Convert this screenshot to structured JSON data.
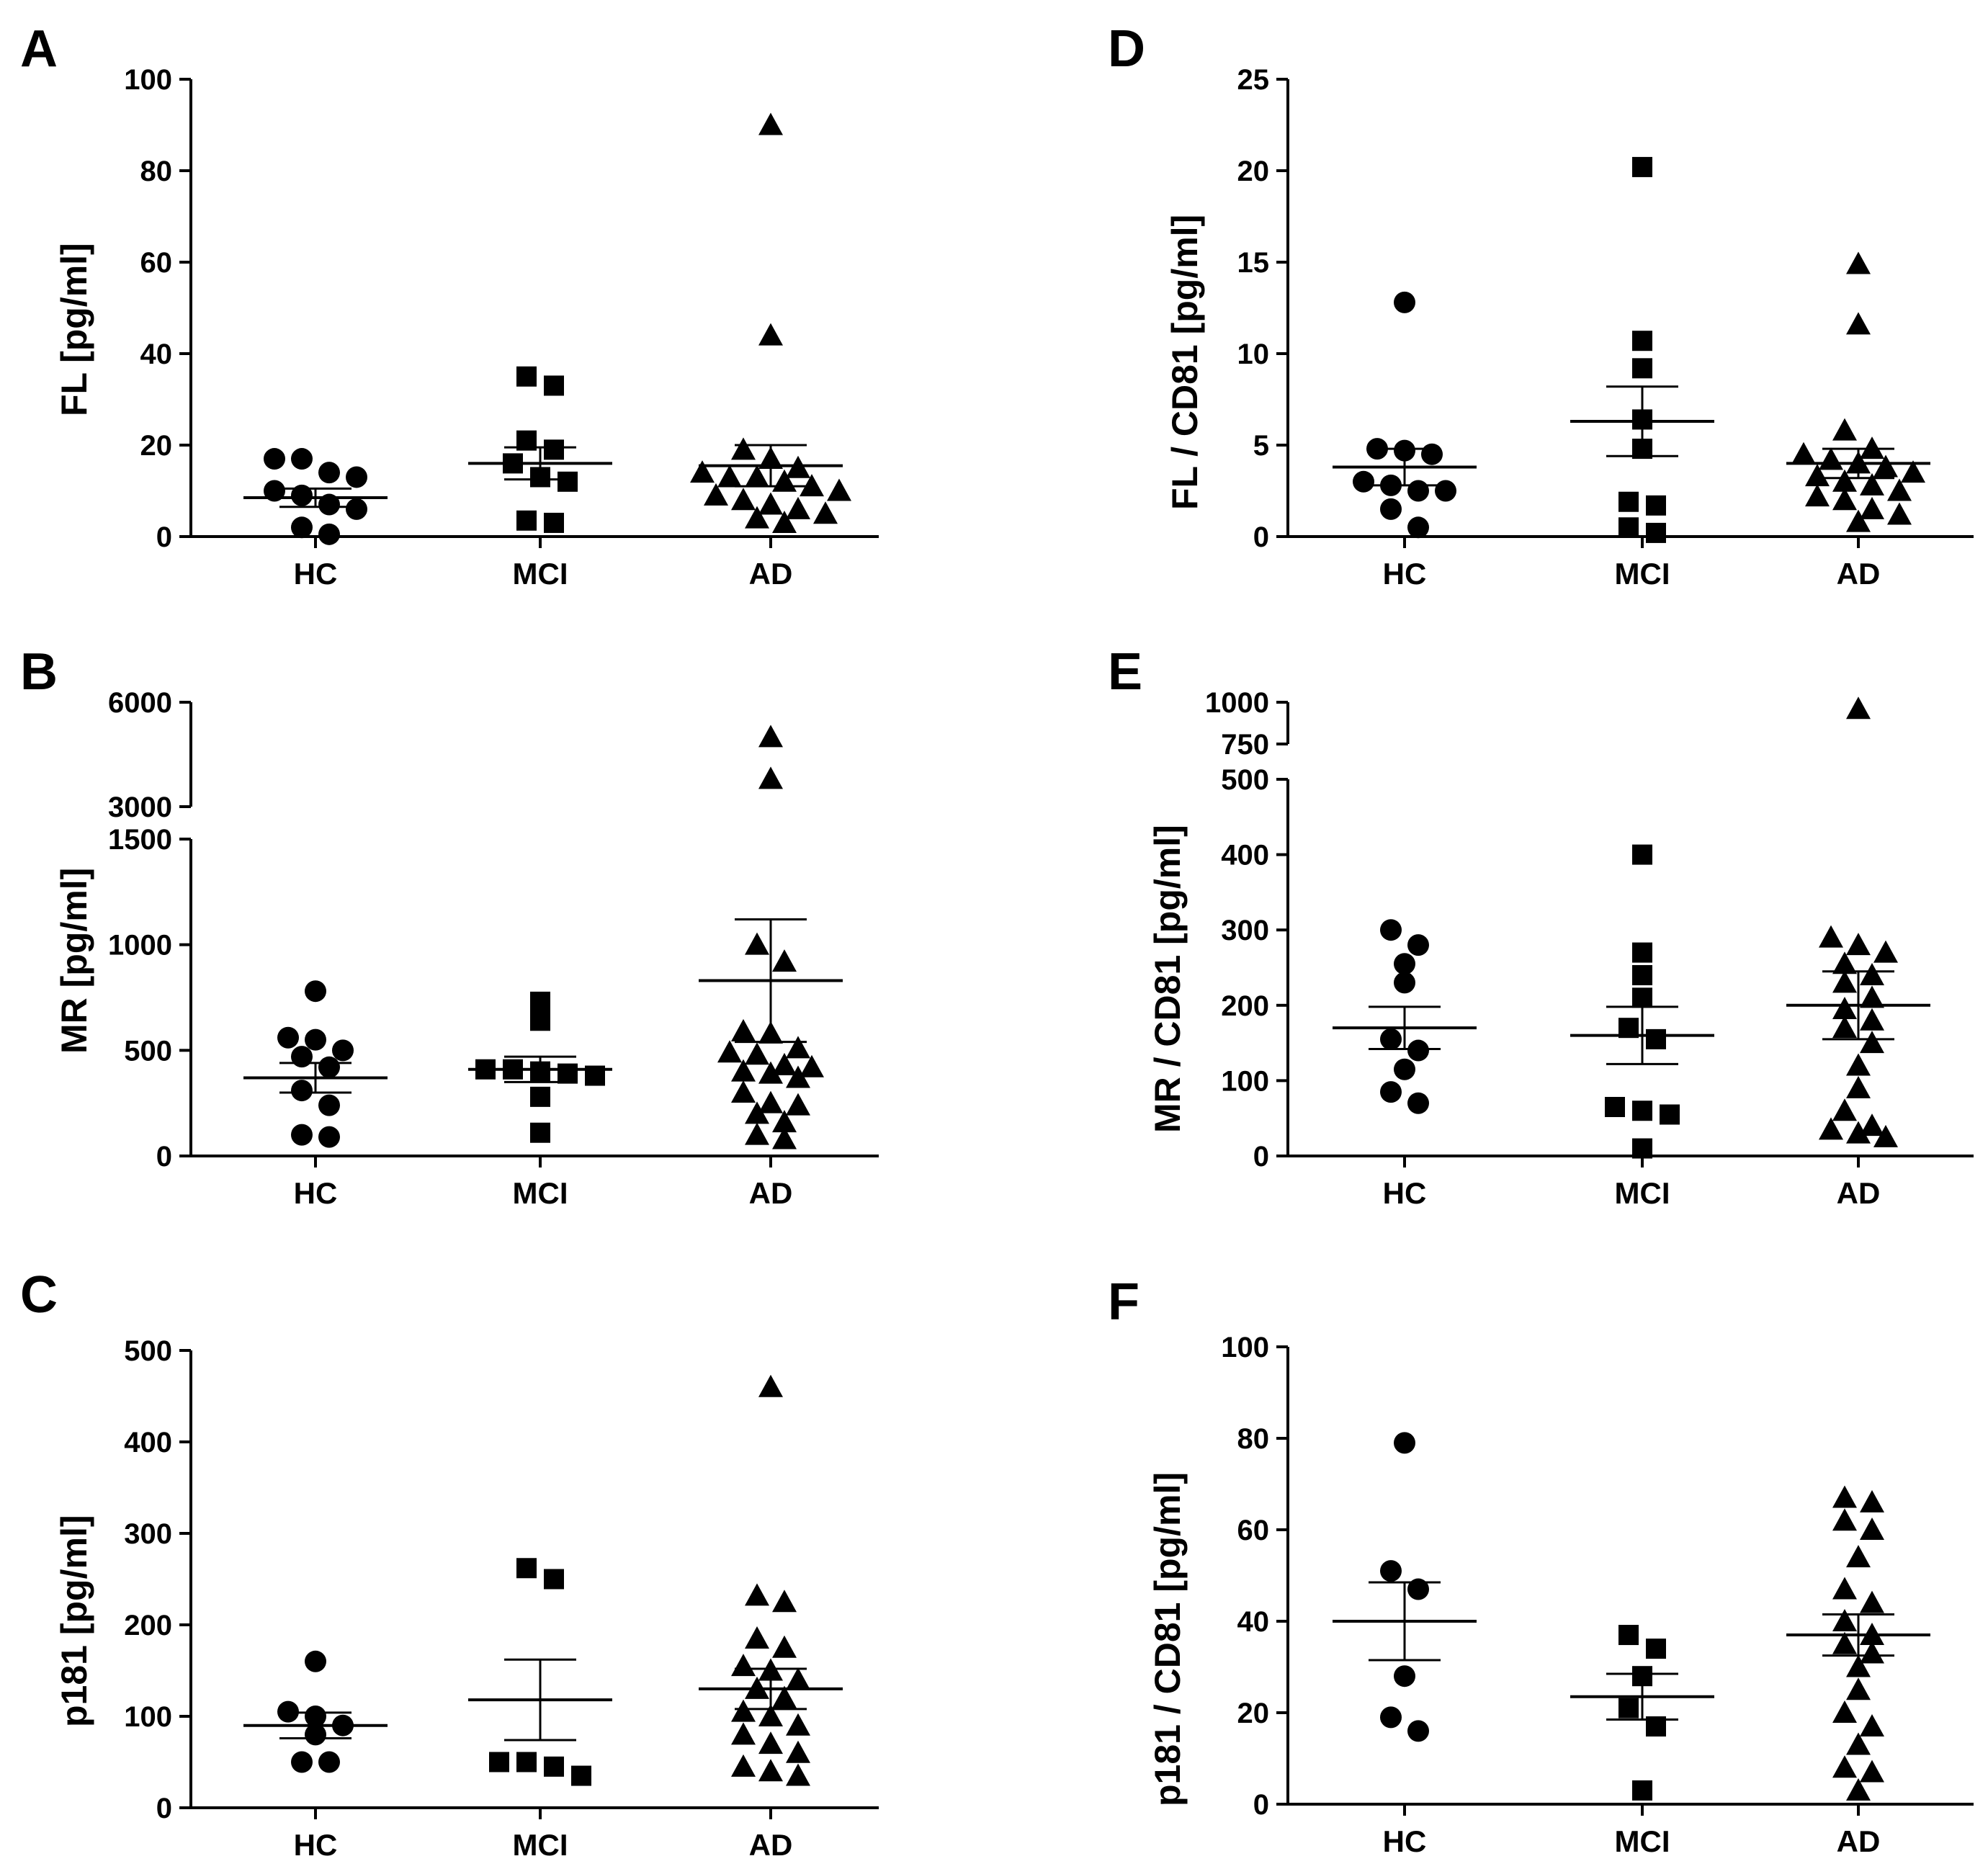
{
  "figure": {
    "panels": [
      "A",
      "B",
      "C",
      "D",
      "E",
      "F"
    ]
  },
  "chart_data": [
    {
      "id": "A",
      "type": "scatter",
      "title": "",
      "xlabel": "",
      "ylabel": "FL [pg/ml]",
      "categories": [
        "HC",
        "MCI",
        "AD"
      ],
      "markers": [
        "circle",
        "square",
        "triangle"
      ],
      "ylim": [
        0,
        100
      ],
      "yticks": [
        0,
        20,
        40,
        60,
        80,
        100
      ],
      "ytick_labels": [
        "0",
        "20",
        "40",
        "60",
        "80",
        "100"
      ],
      "series": [
        {
          "name": "HC",
          "values": [
            0.5,
            2,
            6,
            7,
            9,
            10,
            13,
            14,
            17,
            17
          ],
          "mean": 8.5,
          "sem": 2.0
        },
        {
          "name": "MCI",
          "values": [
            3,
            3.5,
            12,
            13,
            16,
            19,
            21,
            33,
            35
          ],
          "mean": 16,
          "sem": 3.5
        },
        {
          "name": "AD",
          "values": [
            3,
            4,
            5,
            6,
            7,
            8,
            9,
            10,
            11,
            12,
            13,
            13,
            14,
            15,
            17,
            19,
            44,
            90
          ],
          "mean": 15.5,
          "sem": 4.5
        }
      ]
    },
    {
      "id": "B",
      "type": "scatter",
      "title": "",
      "xlabel": "",
      "ylabel": "MR [pg/ml]",
      "categories": [
        "HC",
        "MCI",
        "AD"
      ],
      "markers": [
        "circle",
        "square",
        "triangle"
      ],
      "ylim": [
        0,
        6000
      ],
      "axis_break": [
        1500,
        3000
      ],
      "yticks": [
        0,
        500,
        1000,
        1500,
        3000,
        6000
      ],
      "ytick_labels": [
        "0",
        "500",
        "1000",
        "1500",
        "3000",
        "6000"
      ],
      "series": [
        {
          "name": "HC",
          "values": [
            90,
            100,
            240,
            310,
            420,
            470,
            500,
            550,
            560,
            780
          ],
          "mean": 370,
          "sem": 70
        },
        {
          "name": "MCI",
          "values": [
            110,
            280,
            380,
            390,
            400,
            410,
            410,
            640,
            730
          ],
          "mean": 410,
          "sem": 60
        },
        {
          "name": "AD",
          "values": [
            80,
            100,
            160,
            200,
            240,
            250,
            300,
            370,
            390,
            400,
            420,
            430,
            480,
            490,
            510,
            580,
            590,
            920,
            1000,
            3800,
            5000
          ],
          "mean": 830,
          "sem": 290
        }
      ]
    },
    {
      "id": "C",
      "type": "scatter",
      "title": "",
      "xlabel": "",
      "ylabel": "p181 [pg/ml]",
      "categories": [
        "HC",
        "MCI",
        "AD"
      ],
      "markers": [
        "circle",
        "square",
        "triangle"
      ],
      "ylim": [
        0,
        500
      ],
      "yticks": [
        0,
        100,
        200,
        300,
        400,
        500
      ],
      "ytick_labels": [
        "0",
        "100",
        "200",
        "300",
        "400",
        "500"
      ],
      "series": [
        {
          "name": "HC",
          "values": [
            50,
            50,
            80,
            90,
            100,
            105,
            160
          ],
          "mean": 90,
          "sem": 14
        },
        {
          "name": "MCI",
          "values": [
            35,
            45,
            50,
            50,
            250,
            262
          ],
          "mean": 118,
          "sem": 44
        },
        {
          "name": "AD",
          "values": [
            35,
            40,
            45,
            60,
            70,
            80,
            90,
            100,
            105,
            120,
            130,
            140,
            150,
            155,
            175,
            185,
            225,
            232,
            460
          ],
          "mean": 130,
          "sem": 22
        }
      ]
    },
    {
      "id": "D",
      "type": "scatter",
      "title": "",
      "xlabel": "",
      "ylabel": "FL / CD81 [pg/ml]",
      "categories": [
        "HC",
        "MCI",
        "AD"
      ],
      "markers": [
        "circle",
        "square",
        "triangle"
      ],
      "ylim": [
        0,
        25
      ],
      "yticks": [
        0,
        5,
        10,
        15,
        20,
        25
      ],
      "ytick_labels": [
        "0",
        "5",
        "10",
        "15",
        "20",
        "25"
      ],
      "series": [
        {
          "name": "HC",
          "values": [
            0.5,
            1.5,
            2.5,
            2.5,
            2.8,
            3.0,
            4.5,
            4.7,
            4.8,
            12.8
          ],
          "mean": 3.8,
          "sem": 1.0
        },
        {
          "name": "MCI",
          "values": [
            0.2,
            0.5,
            1.7,
            1.9,
            4.8,
            6.4,
            9.2,
            10.7,
            20.2
          ],
          "mean": 6.3,
          "sem": 1.9
        },
        {
          "name": "AD",
          "values": [
            0.8,
            1.2,
            1.5,
            2.0,
            2.2,
            2.5,
            2.8,
            3.0,
            3.3,
            3.5,
            3.8,
            4.0,
            4.2,
            4.5,
            4.8,
            5.8,
            11.6,
            14.9
          ],
          "mean": 4.0,
          "sem": 0.8
        }
      ]
    },
    {
      "id": "E",
      "type": "scatter",
      "title": "",
      "xlabel": "",
      "ylabel": "MR / CD81 [pg/ml]",
      "categories": [
        "HC",
        "MCI",
        "AD"
      ],
      "markers": [
        "circle",
        "square",
        "triangle"
      ],
      "ylim": [
        0,
        1000
      ],
      "axis_break": [
        500,
        750
      ],
      "yticks": [
        0,
        100,
        200,
        300,
        400,
        500,
        750,
        1000
      ],
      "ytick_labels": [
        "0",
        "100",
        "200",
        "300",
        "400",
        "500",
        "750",
        "1000"
      ],
      "series": [
        {
          "name": "HC",
          "values": [
            70,
            85,
            115,
            140,
            155,
            230,
            255,
            280,
            300
          ],
          "mean": 170,
          "sem": 28
        },
        {
          "name": "MCI",
          "values": [
            10,
            55,
            60,
            65,
            155,
            170,
            210,
            240,
            270,
            400
          ],
          "mean": 160,
          "sem": 38
        },
        {
          "name": "AD",
          "values": [
            25,
            30,
            35,
            40,
            60,
            90,
            120,
            150,
            170,
            180,
            195,
            210,
            230,
            240,
            255,
            270,
            280,
            290,
            960
          ],
          "mean": 200,
          "sem": 45
        }
      ]
    },
    {
      "id": "F",
      "type": "scatter",
      "title": "",
      "xlabel": "",
      "ylabel": "p181 / CD81  [pg/ml]",
      "categories": [
        "HC",
        "MCI",
        "AD"
      ],
      "markers": [
        "circle",
        "square",
        "triangle"
      ],
      "ylim": [
        0,
        100
      ],
      "yticks": [
        0,
        20,
        40,
        60,
        80,
        100
      ],
      "ytick_labels": [
        "0",
        "20",
        "40",
        "60",
        "80",
        "100"
      ],
      "series": [
        {
          "name": "HC",
          "values": [
            16,
            19,
            28,
            47,
            51,
            79
          ],
          "mean": 40,
          "sem": 8.5
        },
        {
          "name": "MCI",
          "values": [
            3,
            17,
            21,
            28,
            34,
            37
          ],
          "mean": 23.5,
          "sem": 5.0
        },
        {
          "name": "AD",
          "values": [
            3,
            7,
            8,
            13,
            17,
            20,
            25,
            30,
            33,
            35,
            37,
            40,
            44,
            47,
            54,
            60,
            62,
            66,
            67
          ],
          "mean": 37,
          "sem": 4.5
        }
      ]
    }
  ]
}
